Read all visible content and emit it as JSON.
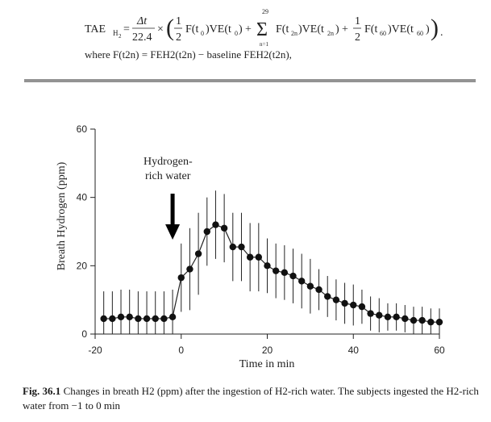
{
  "formula": {
    "lhs": "TAE",
    "lhs_sub": "H",
    "lhs_subsub": "2",
    "num": "Δt",
    "den": "22.4",
    "times": "×",
    "half_num": "1",
    "half_den": "2",
    "term1": "F(t",
    "term1_sub": "0",
    "term1_end": ")VE(t",
    "term1_end_sub": "0",
    "plus": "+",
    "sigma": "Σ",
    "sigma_top": "29",
    "sigma_bottom": "n=1",
    "term2": "F(t",
    "term2_sub": "2n",
    "term2_end": ")VE(t",
    "term2_end_sub": "2n",
    "term3": "F(t",
    "term3_sub": "60",
    "term3_end": ")VE(t",
    "term3_end_sub": "60",
    "close": ")",
    "period": ".",
    "where_line": "where F(t2n) = FEH2(t2n) − baseline FEH2(t2n),"
  },
  "chart_data": {
    "type": "line",
    "title": "",
    "xlabel": "Time in min",
    "ylabel": "Breath Hydrogen (ppm)",
    "xlim": [
      -20,
      60
    ],
    "ylim": [
      0,
      60
    ],
    "xticks": [
      -20,
      0,
      20,
      40,
      60
    ],
    "yticks": [
      0,
      20,
      40,
      60
    ],
    "annotation": {
      "text_line1": "Hydrogen-",
      "text_line2": "rich water",
      "arrow_x": -2
    },
    "series": [
      {
        "name": "Breath H2",
        "x": [
          -18,
          -16,
          -14,
          -12,
          -10,
          -8,
          -6,
          -4,
          -2,
          0,
          2,
          4,
          6,
          8,
          10,
          12,
          14,
          16,
          18,
          20,
          22,
          24,
          26,
          28,
          30,
          32,
          34,
          36,
          38,
          40,
          42,
          44,
          46,
          48,
          50,
          52,
          54,
          56,
          58,
          60
        ],
        "y": [
          4.5,
          4.5,
          5,
          5,
          4.5,
          4.5,
          4.5,
          4.5,
          5,
          16.5,
          19,
          23.5,
          30,
          32,
          31,
          25.5,
          25.5,
          22.5,
          22.5,
          20,
          18.5,
          18,
          17,
          15.5,
          14,
          13,
          11,
          10,
          9,
          8.5,
          8,
          6,
          5.5,
          5,
          5,
          4.5,
          4,
          4,
          3.5,
          3.5
        ],
        "err": [
          8,
          8,
          8,
          8,
          8,
          8,
          8,
          8,
          8,
          10,
          12,
          12,
          10,
          10,
          10,
          10,
          10,
          10,
          10,
          8,
          8,
          8,
          8,
          8,
          8,
          6,
          6,
          6,
          6,
          6,
          5,
          5,
          5,
          4,
          4,
          4,
          4,
          4,
          4,
          4
        ]
      }
    ]
  },
  "caption": {
    "label": "Fig. 36.1",
    "text": "Changes in breath H2 (ppm) after the ingestion of H2-rich water. The subjects ingested the H2-rich water from −1 to 0 min"
  }
}
